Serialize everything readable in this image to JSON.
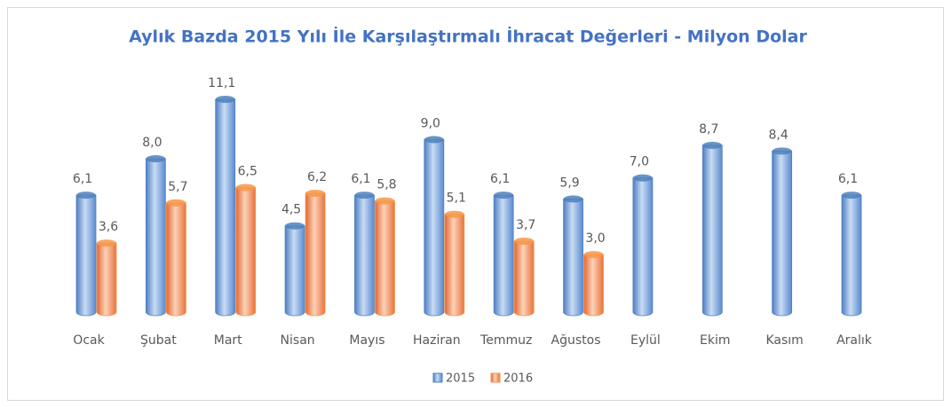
{
  "chart_data": {
    "type": "bar",
    "title": "Aylık Bazda 2015 Yılı İle Karşılaştırmalı İhracat Değerleri - Milyon Dolar",
    "categories": [
      "Ocak",
      "Şubat",
      "Mart",
      "Nisan",
      "Mayıs",
      "Haziran",
      "Temmuz",
      "Ağustos",
      "Eylül",
      "Ekim",
      "Kasım",
      "Aralık"
    ],
    "series": [
      {
        "name": "2015",
        "color": "#4f81bd",
        "values": [
          6.1,
          8.0,
          11.1,
          4.5,
          6.1,
          9.0,
          6.1,
          5.9,
          7.0,
          8.7,
          8.4,
          6.1
        ],
        "value_labels": [
          "6,1",
          "8,0",
          "11,1",
          "4,5",
          "6,1",
          "9,0",
          "6,1",
          "5,9",
          "7,0",
          "8,7",
          "8,4",
          "6,1"
        ]
      },
      {
        "name": "2016",
        "color": "#f79646",
        "values": [
          3.6,
          5.7,
          6.5,
          6.2,
          5.8,
          5.1,
          3.7,
          3.0,
          null,
          null,
          null,
          null
        ],
        "value_labels": [
          "3,6",
          "5,7",
          "6,5",
          "6,2",
          "5,8",
          "5,1",
          "3,7",
          "3,0",
          null,
          null,
          null,
          null
        ]
      }
    ],
    "legend": "bottom"
  }
}
